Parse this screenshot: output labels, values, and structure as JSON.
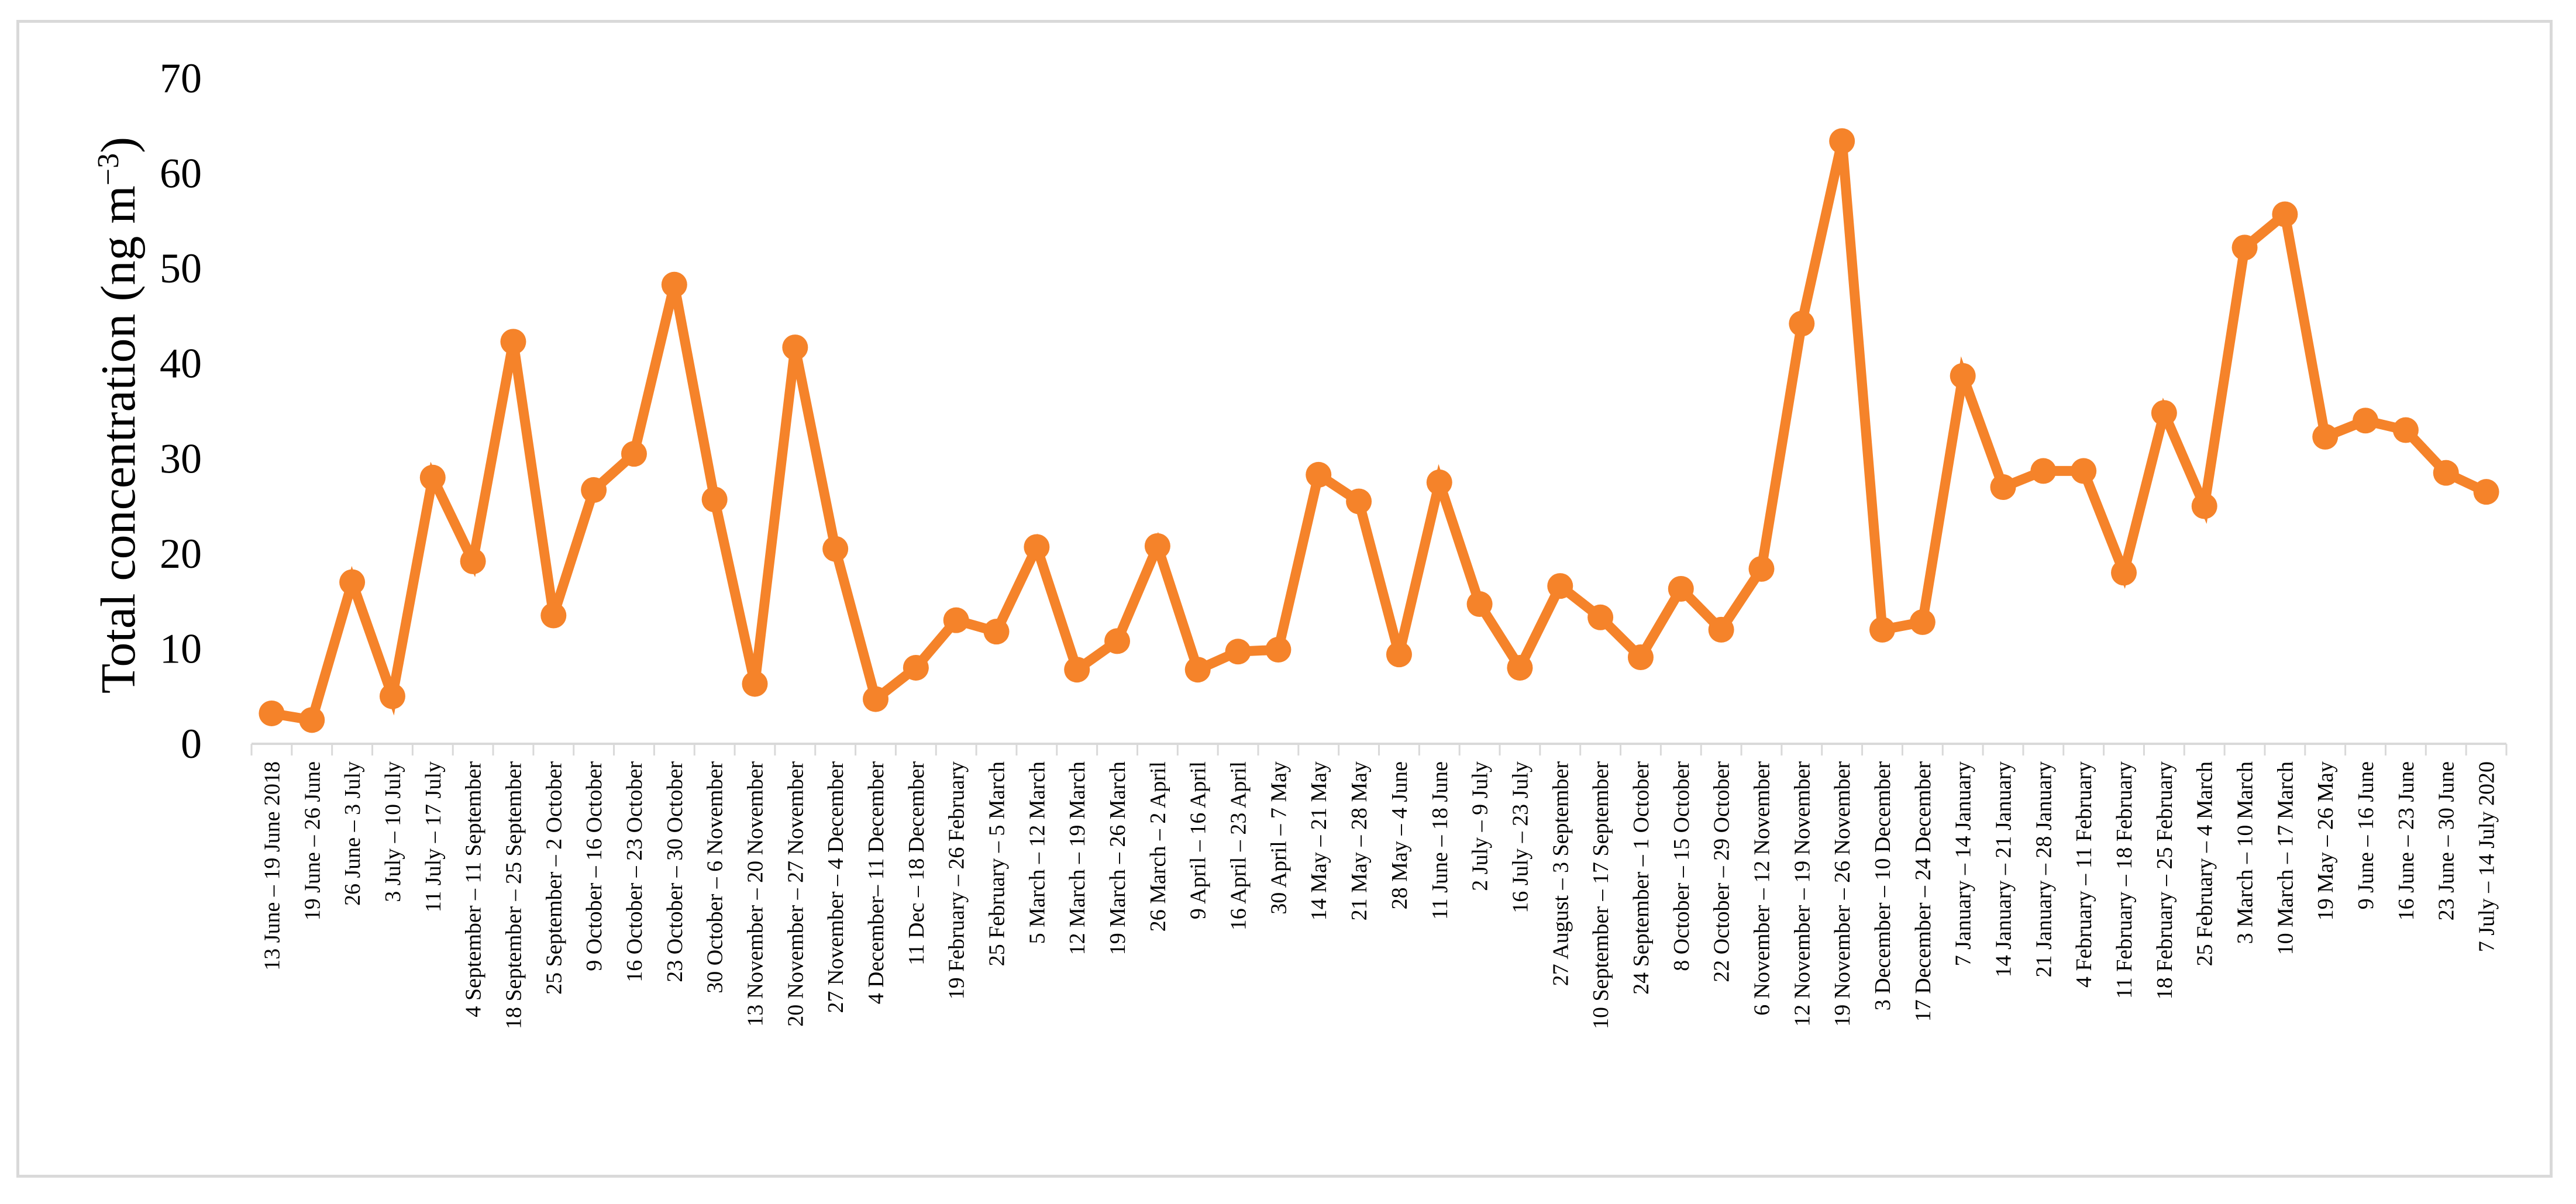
{
  "chart_data": {
    "type": "line",
    "title": "",
    "ylabel": "Total concentration (ng m",
    "ylabel_sup": "−3",
    "ylabel_close": ")",
    "xlabel": "",
    "ylim": [
      0,
      70
    ],
    "yticks": [
      0,
      10,
      20,
      30,
      40,
      50,
      60,
      70
    ],
    "grid": false,
    "legend": "none",
    "line_color": "#F5832A",
    "categories": [
      "13 June – 19 June 2018",
      "19 June – 26 June",
      "26 June – 3 July",
      "3 July – 10 July",
      "11 July – 17 July",
      "4 September – 11 September",
      "18 September – 25 September",
      "25 September – 2 October",
      "9 October – 16 October",
      "16 October – 23 October",
      "23 October – 30 October",
      "30 October – 6 November",
      "13 November – 20 November",
      "20 November – 27 November",
      "27 November – 4 December",
      "4 December– 11 December",
      "11 Dec – 18 December",
      "19 February – 26 February",
      "25 February – 5 March",
      "5 March – 12 March",
      "12 March – 19 March",
      "19 March – 26 March",
      "26 March – 2 April",
      "9 April – 16 April",
      "16 April – 23 April",
      "30 April – 7 May",
      "14 May – 21 May",
      "21 May – 28 May",
      "28 May – 4 June",
      "11 June – 18 June",
      "2 July – 9 July",
      "16 July – 23 July",
      "27 August – 3 September",
      "10 September – 17 September",
      "24 September – 1 October",
      "8 October – 15 October",
      "22 October – 29 October",
      "6 November – 12 November",
      "12 November – 19 November",
      "19 November – 26 November",
      "3 December – 10 December",
      "17 December – 24 December",
      "7 January – 14 January",
      "14 January – 21 January",
      "21 January – 28 January",
      "4 February – 11 February",
      "11 February – 18 February",
      "18 February – 25 February",
      "25 February – 4 March",
      "3 March – 10 March",
      "10 March – 17 March",
      "19 May – 26 May",
      "9 June – 16 June",
      "16 June – 23 June",
      "23 June – 30 June",
      "7 July – 14 July 2020"
    ],
    "series": [
      {
        "values": [
          3.2,
          2.5,
          17.0,
          5.0,
          28.0,
          19.2,
          42.3,
          13.5,
          26.7,
          30.5,
          48.3,
          25.7,
          6.3,
          41.7,
          20.5,
          4.7,
          8.0,
          13.0,
          11.8,
          20.7,
          7.8,
          10.8,
          20.8,
          7.8,
          9.7,
          9.9,
          28.3,
          25.5,
          9.4,
          27.5,
          14.7,
          8.0,
          16.6,
          13.3,
          9.1,
          16.3,
          12.0,
          18.4,
          44.2,
          63.4,
          12.0,
          12.8,
          38.7,
          27.0,
          28.7,
          28.7,
          18.0,
          34.8,
          25.0,
          52.2,
          55.7,
          32.3,
          34.0,
          33.0,
          28.5,
          26.5
        ]
      }
    ]
  }
}
